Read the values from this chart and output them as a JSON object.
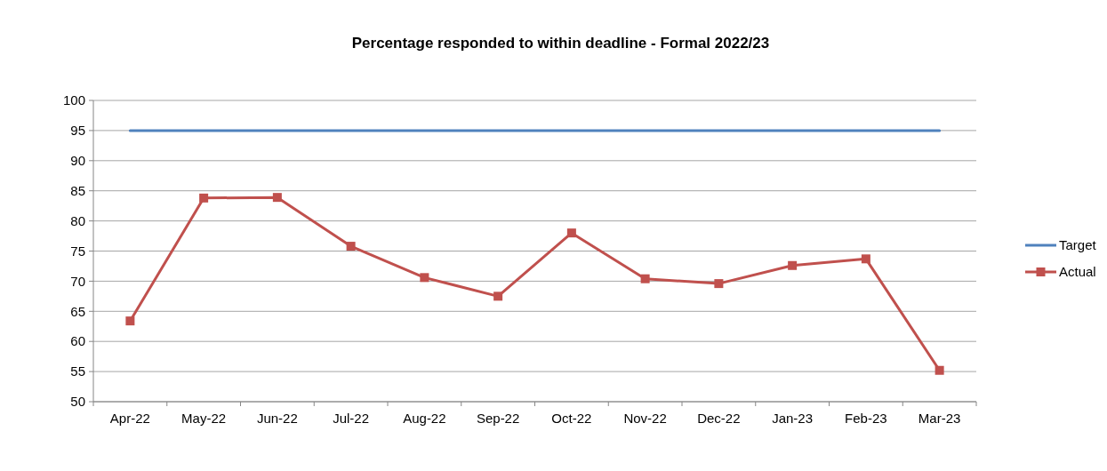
{
  "chart_data": {
    "type": "line",
    "title": "Percentage responded to within deadline - Formal 2022/23",
    "categories": [
      "Apr-22",
      "May-22",
      "Jun-22",
      "Jul-22",
      "Aug-22",
      "Sep-22",
      "Oct-22",
      "Nov-22",
      "Dec-22",
      "Jan-23",
      "Feb-23",
      "Mar-23"
    ],
    "series": [
      {
        "name": "Target",
        "color": "#4f81bd",
        "values": [
          95,
          95,
          95,
          95,
          95,
          95,
          95,
          95,
          95,
          95,
          95,
          95
        ],
        "marker": "none"
      },
      {
        "name": "Actual",
        "color": "#c0504d",
        "values": [
          63.4,
          83.8,
          83.9,
          75.8,
          70.6,
          67.5,
          78.0,
          70.4,
          69.6,
          72.6,
          73.7,
          55.2
        ],
        "marker": "square"
      }
    ],
    "ylim": [
      50,
      100
    ],
    "yticks": [
      50,
      55,
      60,
      65,
      70,
      75,
      80,
      85,
      90,
      95,
      100
    ],
    "grid": "y",
    "legend": "right",
    "line_style": "solid"
  }
}
